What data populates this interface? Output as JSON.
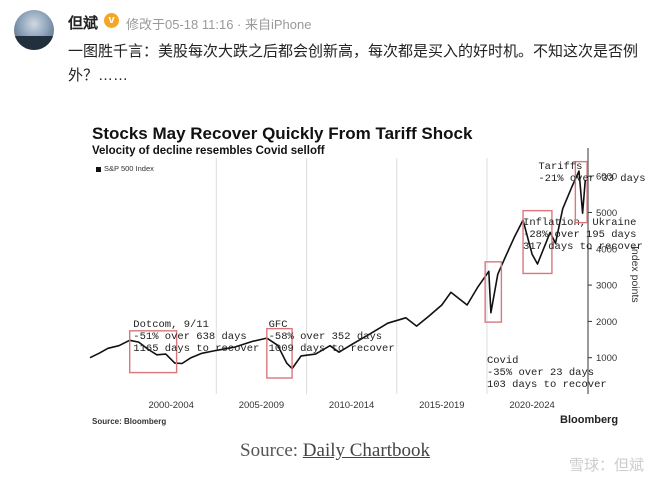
{
  "post": {
    "author": "但斌",
    "verified_mark": "v",
    "meta": "修改于05-18 11:16 · 来自iPhone",
    "text": "一图胜千言：美股每次大跌之后都会创新高，每次都是买入的好时机。不知这次是否例外？……"
  },
  "chart": {
    "title": "Stocks May Recover Quickly From Tariff Shock",
    "subtitle": "Velocity of decline resembles Covid selloff",
    "legend": "S&P 500 Index",
    "source": "Source: Bloomberg",
    "brand": "Bloomberg",
    "y_axis_label": "Index points"
  },
  "chart_data": {
    "type": "line",
    "title": "Stocks May Recover Quickly From Tariff Shock",
    "subtitle": "Velocity of decline resembles Covid selloff",
    "xlabel": "",
    "ylabel": "Index points",
    "x_tick_labels": [
      "2000-2004",
      "2005-2009",
      "2010-2014",
      "2015-2019",
      "2020-2024"
    ],
    "y_ticks": [
      1000,
      2000,
      3000,
      4000,
      5000,
      6000
    ],
    "ylim": [
      0,
      6500
    ],
    "xlim": [
      1998,
      2025.6
    ],
    "series": [
      {
        "name": "S&P 500 Index",
        "points": [
          [
            1998.0,
            1000
          ],
          [
            1998.5,
            1120
          ],
          [
            1999.0,
            1260
          ],
          [
            1999.6,
            1330
          ],
          [
            2000.2,
            1480
          ],
          [
            2000.7,
            1430
          ],
          [
            2001.2,
            1240
          ],
          [
            2001.7,
            1080
          ],
          [
            2002.2,
            1100
          ],
          [
            2002.7,
            850
          ],
          [
            2003.1,
            840
          ],
          [
            2003.6,
            1000
          ],
          [
            2004.2,
            1120
          ],
          [
            2005.0,
            1200
          ],
          [
            2006.0,
            1290
          ],
          [
            2007.0,
            1450
          ],
          [
            2007.8,
            1540
          ],
          [
            2008.4,
            1340
          ],
          [
            2008.9,
            850
          ],
          [
            2009.2,
            700
          ],
          [
            2009.7,
            1050
          ],
          [
            2010.5,
            1100
          ],
          [
            2011.3,
            1330
          ],
          [
            2011.8,
            1150
          ],
          [
            2012.5,
            1360
          ],
          [
            2013.5,
            1650
          ],
          [
            2014.5,
            1950
          ],
          [
            2015.5,
            2100
          ],
          [
            2016.1,
            1870
          ],
          [
            2016.8,
            2150
          ],
          [
            2017.5,
            2450
          ],
          [
            2018.0,
            2800
          ],
          [
            2018.9,
            2450
          ],
          [
            2019.5,
            2950
          ],
          [
            2020.1,
            3380
          ],
          [
            2020.22,
            2240
          ],
          [
            2020.6,
            3300
          ],
          [
            2021.0,
            3750
          ],
          [
            2021.5,
            4300
          ],
          [
            2022.0,
            4790
          ],
          [
            2022.5,
            3850
          ],
          [
            2022.8,
            3580
          ],
          [
            2023.5,
            4450
          ],
          [
            2023.8,
            4150
          ],
          [
            2024.2,
            5100
          ],
          [
            2024.7,
            5700
          ],
          [
            2025.1,
            6140
          ],
          [
            2025.3,
            4980
          ],
          [
            2025.45,
            5900
          ]
        ]
      }
    ],
    "annotations": [
      {
        "lines": [
          "Dotcom, 9/11",
          "-51% over 638 days",
          "1165 days to recover"
        ],
        "box_x": [
          2000.2,
          2002.8
        ]
      },
      {
        "lines": [
          "GFC",
          "-58% over 352 days",
          "1009 days to recover"
        ],
        "box_x": [
          2007.8,
          2009.2
        ]
      },
      {
        "lines": [
          "Covid",
          "-35% over 23 days",
          "103 days to recover"
        ],
        "box_x": [
          2019.9,
          2020.8
        ]
      },
      {
        "lines": [
          "Inflation, Ukraine",
          "-28% over 195 days",
          "317 days to recover"
        ],
        "box_x": [
          2022.0,
          2023.6
        ]
      },
      {
        "lines": [
          "Tariffs",
          "-21% over 33 days"
        ],
        "box_x": [
          2024.9,
          2025.55
        ]
      }
    ],
    "grid": true,
    "legend_position": "top-left",
    "colors": {
      "line": "#111111",
      "box": "#d9777f",
      "grid": "#dddddd"
    }
  },
  "footer": {
    "source_prefix": "Source: ",
    "source_link": "Daily Chartbook",
    "watermark": "雪球：但斌"
  }
}
